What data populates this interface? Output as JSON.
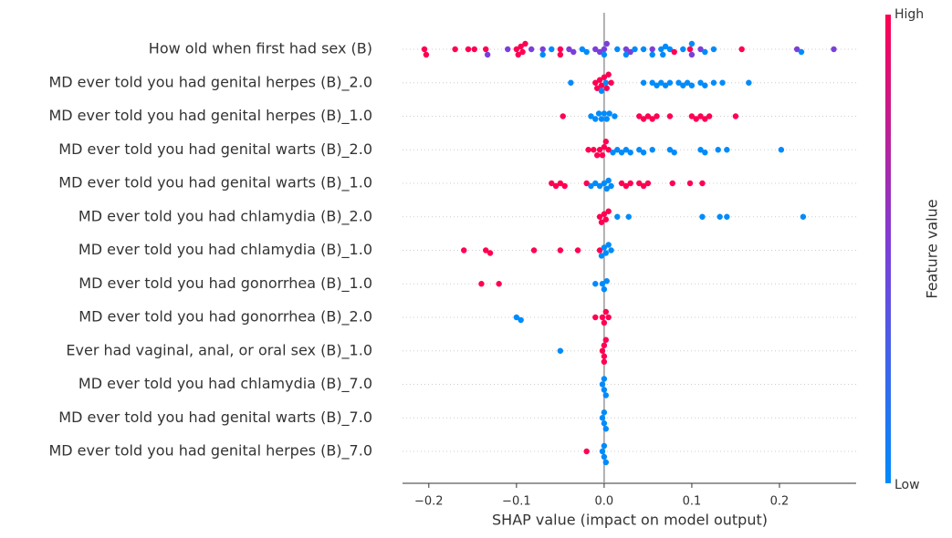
{
  "chart_data": {
    "type": "beeswarm",
    "xlabel": "SHAP value (impact on model output)",
    "xlim": [
      -0.23,
      0.2875
    ],
    "xticks": [
      {
        "value": -0.2,
        "label": "−0.2"
      },
      {
        "value": -0.1,
        "label": "−0.1"
      },
      {
        "value": 0.0,
        "label": "0.0"
      },
      0.1,
      0.2
    ],
    "categories": [
      "How old when first had sex (B)",
      "MD ever told you had genital herpes (B)_2.0",
      "MD ever told you had genital herpes (B)_1.0",
      "MD ever told you had genital warts (B)_2.0",
      "MD ever told you had genital warts (B)_1.0",
      "MD ever told you had chlamydia (B)_2.0",
      "MD ever told you had chlamydia (B)_1.0",
      "MD ever told you had gonorrhea (B)_1.0",
      "MD ever told you had gonorrhea (B)_2.0",
      "Ever had vaginal, anal, or oral sex (B)_1.0",
      "MD ever told you had chlamydia (B)_7.0",
      "MD ever told you had genital warts (B)_7.0",
      "MD ever told you had genital herpes (B)_7.0"
    ],
    "shap_values": [
      [
        -0.205,
        -0.203,
        -0.17,
        -0.155,
        -0.148,
        -0.135,
        -0.1,
        -0.098,
        -0.095,
        -0.093,
        -0.09,
        -0.05,
        -0.05,
        0.08,
        0.157,
        0.098,
        -0.133,
        -0.11,
        -0.083,
        -0.07,
        -0.04,
        -0.035,
        -0.01,
        -0.005,
        0.0,
        0.003,
        0.025,
        0.03,
        0.055,
        0.1,
        0.11,
        0.22,
        0.262,
        -0.07,
        -0.06,
        -0.025,
        -0.02,
        0.0,
        0.015,
        0.025,
        0.035,
        0.045,
        0.055,
        0.065,
        0.067,
        0.07,
        0.075,
        0.09,
        0.1,
        0.115,
        0.125,
        0.225
      ],
      [
        -0.01,
        -0.008,
        -0.005,
        -0.003,
        0.0,
        0.003,
        0.005,
        0.008,
        -0.038,
        0.045,
        0.055,
        0.06,
        0.065,
        0.07,
        0.075,
        0.085,
        0.09,
        0.095,
        0.1,
        0.11,
        0.115,
        0.125,
        0.135,
        0.165,
        -0.003,
        0.002
      ],
      [
        -0.047,
        0.04,
        0.045,
        0.05,
        0.055,
        0.06,
        0.075,
        0.1,
        0.105,
        0.11,
        0.12,
        0.15,
        0.115,
        -0.015,
        -0.01,
        -0.006,
        -0.003,
        0.0,
        0.003,
        0.006,
        0.012
      ],
      [
        -0.018,
        -0.012,
        -0.008,
        -0.005,
        -0.002,
        0.0,
        0.002,
        0.005,
        0.01,
        0.015,
        0.02,
        0.025,
        0.03,
        0.04,
        0.045,
        0.055,
        0.075,
        0.08,
        0.11,
        0.115,
        0.13,
        0.14,
        0.202
      ],
      [
        -0.06,
        -0.055,
        -0.05,
        -0.045,
        -0.02,
        0.02,
        0.025,
        0.03,
        0.04,
        0.045,
        0.05,
        0.078,
        0.098,
        0.112,
        -0.015,
        -0.01,
        -0.005,
        0.0,
        0.003,
        0.005,
        0.008
      ],
      [
        -0.005,
        -0.003,
        0.0,
        0.002,
        0.005,
        0.015,
        0.028,
        0.112,
        0.132,
        0.14,
        0.227
      ],
      [
        -0.16,
        -0.135,
        -0.13,
        -0.08,
        -0.05,
        -0.03,
        -0.005,
        -0.003,
        0.0,
        0.002,
        0.005,
        0.008
      ],
      [
        -0.14,
        -0.12,
        -0.01,
        -0.002,
        0.0,
        0.003
      ],
      [
        -0.1,
        -0.095,
        -0.01,
        -0.002,
        0.0,
        0.002,
        0.005
      ],
      [
        -0.05,
        -0.002,
        0.0,
        0.002,
        0.0,
        0.0
      ],
      [
        -0.002,
        0.0,
        0.002,
        0.0
      ],
      [
        -0.002,
        0.0,
        0.002,
        0.0
      ],
      [
        -0.02,
        -0.002,
        0.0,
        0.002,
        0.0
      ]
    ],
    "feature_values": [
      [
        1,
        1,
        1,
        1,
        1,
        1,
        1,
        1,
        1,
        1,
        1,
        1,
        1,
        1,
        1,
        1,
        0.5,
        0.5,
        0.5,
        0.5,
        0.5,
        0.5,
        0.5,
        0.5,
        0.5,
        0.5,
        0.5,
        0.5,
        0.5,
        0.5,
        0.5,
        0.5,
        0.5,
        0,
        0,
        0,
        0,
        0,
        0,
        0,
        0,
        0,
        0,
        0,
        0,
        0,
        0,
        0,
        0,
        0,
        0,
        0
      ],
      [
        1,
        1,
        1,
        1,
        1,
        1,
        1,
        1,
        0,
        0,
        0,
        0,
        0,
        0,
        0,
        0,
        0,
        0,
        0,
        0,
        0,
        0,
        0,
        0,
        0,
        0
      ],
      [
        1,
        1,
        1,
        1,
        1,
        1,
        1,
        1,
        1,
        1,
        1,
        1,
        1,
        0,
        0,
        0,
        0,
        0,
        0,
        0,
        0
      ],
      [
        1,
        1,
        1,
        1,
        1,
        1,
        1,
        1,
        0,
        0,
        0,
        0,
        0,
        0,
        0,
        0,
        0,
        0,
        0,
        0,
        0,
        0,
        0
      ],
      [
        1,
        1,
        1,
        1,
        1,
        1,
        1,
        1,
        1,
        1,
        1,
        1,
        1,
        1,
        0,
        0,
        0,
        0,
        0,
        0,
        0
      ],
      [
        1,
        1,
        1,
        1,
        1,
        0,
        0,
        0,
        0,
        0,
        0
      ],
      [
        1,
        1,
        1,
        1,
        1,
        1,
        1,
        0,
        0,
        0,
        0,
        0
      ],
      [
        1,
        1,
        0,
        0,
        0,
        0
      ],
      [
        0,
        0,
        1,
        1,
        1,
        1,
        1
      ],
      [
        0,
        1,
        1,
        1,
        1,
        1
      ],
      [
        0,
        0,
        0,
        0
      ],
      [
        0,
        0,
        0,
        0
      ],
      [
        1,
        0,
        0,
        0,
        0
      ]
    ],
    "colorbar": {
      "label": "Feature value",
      "high": "High",
      "low": "Low",
      "colors": [
        "#008bfb",
        "#7b3fd9",
        "#ff0052"
      ]
    }
  }
}
